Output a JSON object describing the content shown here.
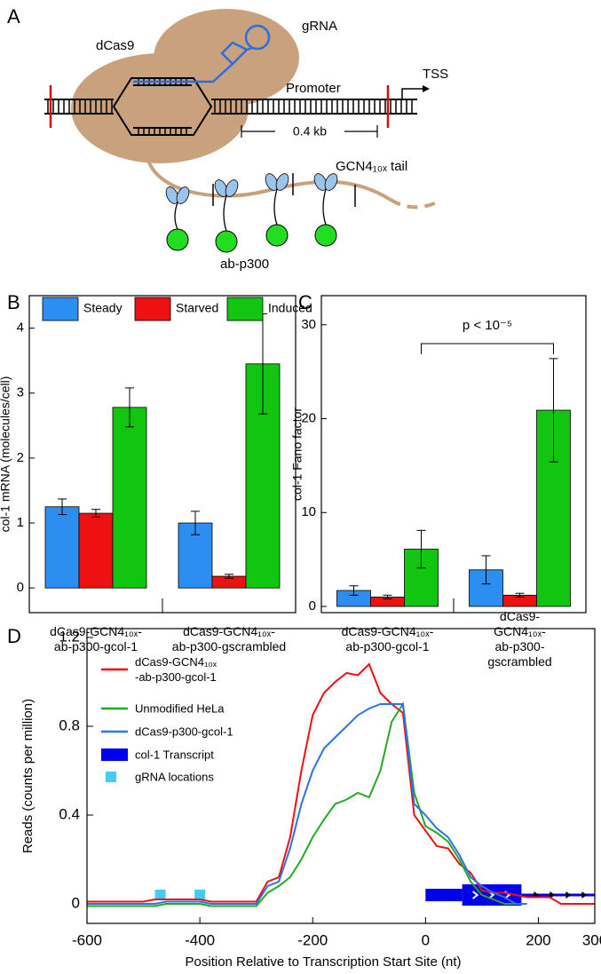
{
  "diagram": {
    "panel": "A",
    "labels": {
      "grna": "gRNA",
      "dcas9": "dCas9",
      "promoter": "Promoter",
      "tss": "TSS",
      "scale": "0.4 kb",
      "tail": "GCN4₁₀ₓ tail",
      "effector": "ab-p300"
    }
  },
  "chart_data": [
    {
      "type": "bar",
      "panel": "B",
      "y_label": "col-1 mRNA (molecules/cell)",
      "categories": [
        "dCas9-GCN4₁₀ₓ-\nab-p300-gcol-1",
        "dCas9-GCN4₁₀ₓ-\nab-p300-gscrambled"
      ],
      "series": [
        {
          "name": "Steady",
          "color": "#2c8ef0",
          "values": [
            1.25,
            1.0
          ],
          "errors": [
            0.12,
            0.18
          ]
        },
        {
          "name": "Starved",
          "color": "#ee1111",
          "values": [
            1.15,
            0.18
          ],
          "errors": [
            0.06,
            0.03
          ]
        },
        {
          "name": "Induced",
          "color": "#11c511",
          "values": [
            2.78,
            3.45
          ],
          "errors": [
            0.3,
            0.77
          ]
        }
      ],
      "ylim": [
        -0.38,
        4.5
      ],
      "yticks": [
        0,
        1,
        2,
        3,
        4
      ]
    },
    {
      "type": "bar",
      "panel": "C",
      "y_label": "col-1 Fano factor",
      "categories": [
        "dCas9-GCN4₁₀ₓ-\nab-p300-gcol-1",
        "dCas9-GCN4₁₀ₓ-\nab-p300-gscrambled"
      ],
      "series": [
        {
          "color": "#2c8ef0",
          "values": [
            1.7,
            3.9
          ],
          "errors": [
            0.5,
            1.5
          ]
        },
        {
          "color": "#ee1111",
          "values": [
            1.0,
            1.2
          ],
          "errors": [
            0.2,
            0.2
          ]
        },
        {
          "color": "#11c511",
          "values": [
            6.1,
            20.9
          ],
          "errors": [
            2.0,
            5.5
          ]
        }
      ],
      "ylim": [
        -0.66,
        33.1
      ],
      "yticks": [
        0,
        10,
        20,
        30
      ],
      "annotation": "p < 10⁻⁵"
    },
    {
      "type": "line",
      "panel": "D",
      "y_label": "Reads (counts per million)",
      "x_label": "Position Relative to Transcription Start Site (nt)",
      "x": [
        -600,
        -580,
        -560,
        -540,
        -520,
        -500,
        -480,
        -460,
        -440,
        -420,
        -400,
        -380,
        -360,
        -340,
        -320,
        -300,
        -280,
        -260,
        -240,
        -220,
        -200,
        -180,
        -160,
        -140,
        -120,
        -100,
        -80,
        -60,
        -40,
        -20,
        0,
        20,
        40,
        60,
        80,
        100,
        120,
        140,
        160,
        180,
        200,
        220,
        240,
        260,
        280,
        300
      ],
      "series": [
        {
          "name": "dCas9-GCN4₁₀ₓ\n-ab-p300-gcol-1",
          "color": "#ee1111",
          "values": [
            0.01,
            0.01,
            0.01,
            0.01,
            0.01,
            0.01,
            0.02,
            0.02,
            0.02,
            0.02,
            0.02,
            0.01,
            0.01,
            0.01,
            0.01,
            0.01,
            0.1,
            0.12,
            0.3,
            0.6,
            0.85,
            0.95,
            1.0,
            1.04,
            1.03,
            1.08,
            0.95,
            0.9,
            0.86,
            0.4,
            0.33,
            0.26,
            0.25,
            0.18,
            0.14,
            0.06,
            0.05,
            0.05,
            0.04,
            0.03,
            0.03,
            0.03,
            0.0,
            0.0,
            0.0,
            0.0
          ]
        },
        {
          "name": "Unmodified HeLa",
          "color": "#22aa22",
          "values": [
            -0.01,
            -0.01,
            -0.01,
            -0.01,
            -0.01,
            -0.01,
            -0.01,
            0.0,
            0.0,
            0.0,
            0.0,
            -0.01,
            -0.01,
            -0.01,
            -0.01,
            -0.01,
            0.05,
            0.08,
            0.12,
            0.2,
            0.3,
            0.38,
            0.45,
            0.47,
            0.5,
            0.48,
            0.6,
            0.82,
            0.9,
            0.5,
            0.35,
            0.32,
            0.28,
            0.2,
            0.1,
            0.04,
            0.02,
            0.0,
            0.0,
            null,
            null,
            null,
            null,
            null,
            null,
            null
          ]
        },
        {
          "name": "dCas9-p300-gcol-1",
          "color": "#2b73e8",
          "values": [
            0.0,
            0.0,
            0.0,
            0.0,
            0.0,
            0.0,
            0.0,
            0.01,
            0.01,
            0.01,
            0.01,
            0.0,
            0.0,
            0.0,
            0.0,
            0.0,
            0.08,
            0.1,
            0.25,
            0.45,
            0.6,
            0.7,
            0.75,
            0.8,
            0.85,
            0.88,
            0.9,
            0.9,
            0.9,
            0.45,
            0.4,
            0.34,
            0.3,
            0.22,
            0.12,
            0.08,
            0.05,
            0.03,
            0.0,
            0.0,
            null,
            null,
            null,
            null,
            null,
            null
          ]
        }
      ],
      "transcript": {
        "name": "col-1 Transcript",
        "color": "#0000ee",
        "start": 0,
        "thick_start": 65,
        "end": 170
      },
      "grna": {
        "name": "gRNA locations",
        "color": "#44ccf5",
        "x": [
          -470,
          -400
        ]
      },
      "xlim": [
        -600,
        300
      ],
      "ylim": [
        -0.088,
        1.24
      ],
      "xticks": [
        -600,
        -400,
        -200,
        0,
        200,
        300
      ],
      "yticks": [
        0,
        0.4,
        0.8,
        1.2
      ]
    }
  ]
}
